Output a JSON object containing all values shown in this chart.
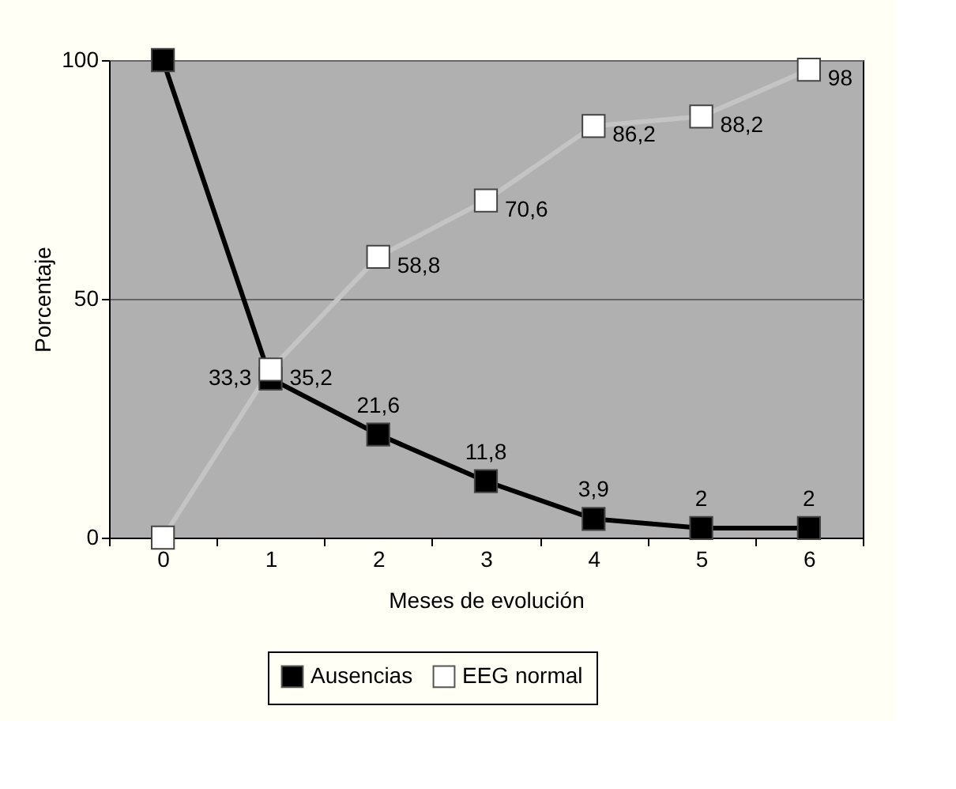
{
  "chart_data": {
    "type": "line",
    "xlabel": "Meses de evolución",
    "ylabel": "Porcentaje",
    "categories": [
      "0",
      "1",
      "2",
      "3",
      "4",
      "5",
      "6"
    ],
    "series": [
      {
        "name": "Ausencias",
        "color": "#000000",
        "values": [
          100,
          33.3,
          21.6,
          11.8,
          3.9,
          2,
          2
        ],
        "value_labels": [
          null,
          "33,3",
          "21,6",
          "11,8",
          "3,9",
          "2",
          "2"
        ]
      },
      {
        "name": "EEG normal",
        "color": "#ffffff",
        "values": [
          0,
          35.2,
          58.8,
          70.6,
          86.2,
          88.2,
          98
        ],
        "value_labels": [
          null,
          "35,2",
          "58,8",
          "70,6",
          "86,2",
          "88,2",
          "98"
        ]
      }
    ],
    "ylim": [
      0,
      100
    ],
    "yticks": [
      0,
      50,
      100
    ],
    "grid": "y",
    "legend": "bottom",
    "marker": "square",
    "line_style": "solid"
  }
}
